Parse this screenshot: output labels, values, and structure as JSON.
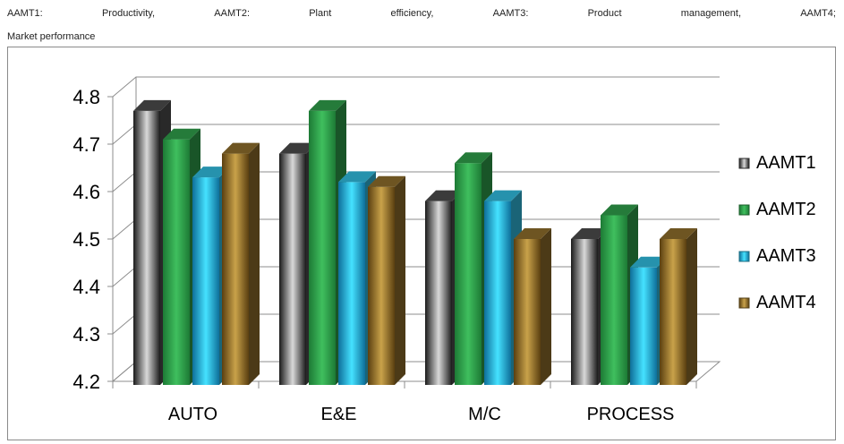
{
  "caption": {
    "words_line1": [
      "AAMT1:",
      "Productivity,",
      "AAMT2:",
      "Plant",
      "efficiency,",
      "AAMT3:",
      "Product",
      "management,",
      "AAMT4;"
    ],
    "line2": "Market performance"
  },
  "chart_data": {
    "type": "bar",
    "title": "",
    "xlabel": "",
    "ylabel": "",
    "categories": [
      "AUTO",
      "E&E",
      "M/C",
      "PROCESS"
    ],
    "ylim": [
      4.2,
      4.8
    ],
    "yticks": [
      "4.2",
      "4.3",
      "4.4",
      "4.5",
      "4.6",
      "4.7",
      "4.8"
    ],
    "grid": true,
    "legend_position": "right",
    "series": [
      {
        "name": "AAMT1",
        "values": [
          4.77,
          4.68,
          4.58,
          4.5
        ],
        "color": "#4a4a4a"
      },
      {
        "name": "AAMT2",
        "values": [
          4.71,
          4.77,
          4.66,
          4.55
        ],
        "color": "#2e9a48"
      },
      {
        "name": "AAMT3",
        "values": [
          4.63,
          4.62,
          4.58,
          4.44
        ],
        "color": "#2fb6d8"
      },
      {
        "name": "AAMT4",
        "values": [
          4.68,
          4.61,
          4.5,
          4.5
        ],
        "color": "#8a6a2a"
      }
    ]
  }
}
